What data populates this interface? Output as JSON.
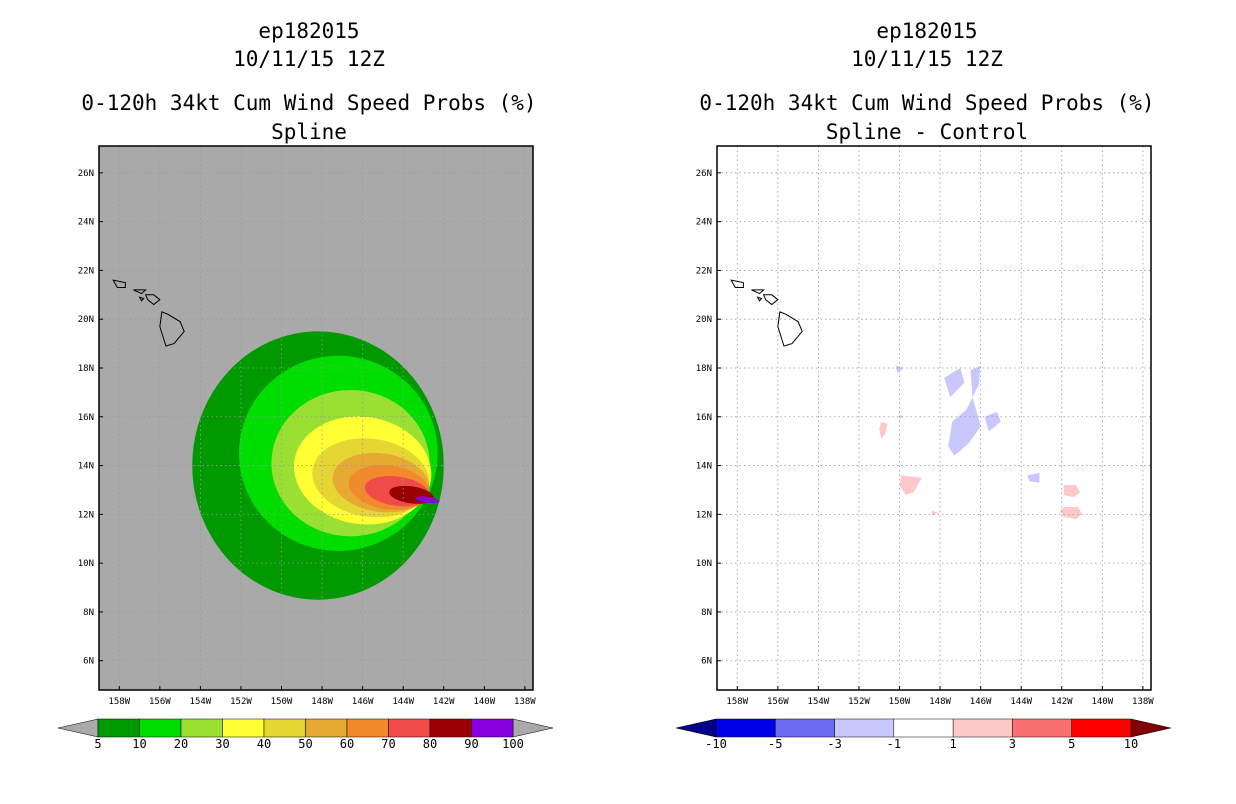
{
  "chart_data": [
    {
      "type": "heatmap",
      "title": [
        "ep182015",
        "10/11/15 12Z",
        "0-120h 34kt Cum Wind Speed Probs (%)",
        "Spline"
      ],
      "x_ticks": [
        "158W",
        "156W",
        "154W",
        "152W",
        "150W",
        "148W",
        "146W",
        "144W",
        "142W",
        "140W",
        "138W"
      ],
      "y_ticks": [
        "26N",
        "24N",
        "22N",
        "20N",
        "18N",
        "16N",
        "14N",
        "12N",
        "10N",
        "8N",
        "6N"
      ],
      "xlim": [
        -159,
        -137.6
      ],
      "ylim": [
        4.8,
        27.1
      ],
      "background": "#a9a9a9",
      "colorbar": {
        "labels": [
          "5",
          "10",
          "20",
          "30",
          "40",
          "50",
          "60",
          "70",
          "80",
          "90",
          "100"
        ],
        "colors": [
          "#009900",
          "#00dd00",
          "#99e033",
          "#ffff33",
          "#e6d633",
          "#e6aa33",
          "#f08a2a",
          "#f04a4a",
          "#990000",
          "#8800e0"
        ],
        "extend_colors": [
          "#a9a9a9",
          "#a9a9a9"
        ]
      },
      "levels": [
        {
          "min": 5,
          "color": "#009900",
          "center": [
            -148.2,
            14.0
          ],
          "rx": 6.2,
          "ry": 5.5
        },
        {
          "min": 10,
          "color": "#00dd00",
          "center": [
            -147.2,
            14.5
          ],
          "rx": 4.9,
          "ry": 4.0
        },
        {
          "min": 20,
          "color": "#99e033",
          "center": [
            -146.6,
            14.1
          ],
          "rx": 3.9,
          "ry": 3.0
        },
        {
          "min": 30,
          "color": "#ffff33",
          "center": [
            -146.0,
            13.8
          ],
          "rx": 3.4,
          "ry": 2.2
        },
        {
          "min": 40,
          "color": "#e6d633",
          "center": [
            -145.6,
            13.5
          ],
          "rx": 2.9,
          "ry": 1.6
        },
        {
          "min": 50,
          "color": "#e6aa33",
          "center": [
            -145.1,
            13.3
          ],
          "rx": 2.4,
          "ry": 1.2
        },
        {
          "min": 60,
          "color": "#f08a2a",
          "center": [
            -144.7,
            13.1
          ],
          "rx": 2.0,
          "ry": 0.9
        },
        {
          "min": 70,
          "color": "#f04a4a",
          "center": [
            -144.3,
            12.95
          ],
          "rx": 1.6,
          "ry": 0.6
        },
        {
          "min": 80,
          "color": "#990000",
          "center": [
            -143.6,
            12.8
          ],
          "rx": 1.1,
          "ry": 0.35
        },
        {
          "min": 90,
          "color": "#8800e0",
          "center": [
            -142.8,
            12.6
          ],
          "rx": 0.6,
          "ry": 0.12
        }
      ]
    },
    {
      "type": "heatmap",
      "title": [
        "ep182015",
        "10/11/15 12Z",
        "0-120h 34kt Cum Wind Speed Probs (%)",
        "Spline - Control"
      ],
      "x_ticks": [
        "158W",
        "156W",
        "154W",
        "152W",
        "150W",
        "148W",
        "146W",
        "144W",
        "142W",
        "140W",
        "138W"
      ],
      "y_ticks": [
        "26N",
        "24N",
        "22N",
        "20N",
        "18N",
        "16N",
        "14N",
        "12N",
        "10N",
        "8N",
        "6N"
      ],
      "xlim": [
        -159,
        -137.6
      ],
      "ylim": [
        4.8,
        27.1
      ],
      "background": "#ffffff",
      "colorbar": {
        "labels": [
          "-10",
          "-5",
          "-3",
          "-1",
          "1",
          "3",
          "5",
          "10"
        ],
        "colors": [
          "#0000e6",
          "#6b6bf0",
          "#c8c8ff",
          "#ffffff",
          "#ffc8c8",
          "#f87070",
          "#ff0000"
        ],
        "extend_colors": [
          "#00008b",
          "#7f0000"
        ]
      },
      "patches": [
        {
          "value": -2,
          "color": "#c8c8ff",
          "points": [
            [
              -147.8,
              17.6
            ],
            [
              -147.0,
              18.0
            ],
            [
              -146.8,
              17.4
            ],
            [
              -147.5,
              16.8
            ]
          ]
        },
        {
          "value": -2,
          "color": "#c8c8ff",
          "points": [
            [
              -146.5,
              17.9
            ],
            [
              -146.0,
              18.1
            ],
            [
              -146.1,
              17.3
            ],
            [
              -146.7,
              16.3
            ],
            [
              -147.4,
              15.8
            ],
            [
              -147.6,
              14.8
            ],
            [
              -147.3,
              14.4
            ],
            [
              -146.6,
              14.9
            ],
            [
              -146.0,
              15.6
            ],
            [
              -146.4,
              16.8
            ]
          ]
        },
        {
          "value": -2,
          "color": "#c8c8ff",
          "points": [
            [
              -145.8,
              16.0
            ],
            [
              -145.2,
              16.2
            ],
            [
              -145.0,
              15.8
            ],
            [
              -145.6,
              15.4
            ]
          ]
        },
        {
          "value": -2,
          "color": "#c8c8ff",
          "points": [
            [
              -150.2,
              18.1
            ],
            [
              -149.8,
              18.0
            ],
            [
              -150.1,
              17.8
            ]
          ]
        },
        {
          "value": -2,
          "color": "#c8c8ff",
          "points": [
            [
              -143.7,
              13.6
            ],
            [
              -143.1,
              13.7
            ],
            [
              -143.1,
              13.3
            ],
            [
              -143.6,
              13.35
            ]
          ]
        },
        {
          "value": 2,
          "color": "#ffc8c8",
          "points": [
            [
              -150.9,
              15.8
            ],
            [
              -150.6,
              15.7
            ],
            [
              -150.7,
              15.3
            ],
            [
              -150.9,
              15.1
            ],
            [
              -151.0,
              15.5
            ]
          ]
        },
        {
          "value": 2,
          "color": "#ffc8c8",
          "points": [
            [
              -149.9,
              13.6
            ],
            [
              -148.9,
              13.5
            ],
            [
              -149.3,
              12.9
            ],
            [
              -149.7,
              12.8
            ],
            [
              -150.0,
              13.2
            ]
          ]
        },
        {
          "value": 2,
          "color": "#ffc8c8",
          "points": [
            [
              -141.9,
              13.2
            ],
            [
              -141.3,
              13.2
            ],
            [
              -141.1,
              12.9
            ],
            [
              -141.4,
              12.7
            ],
            [
              -141.9,
              12.8
            ]
          ]
        },
        {
          "value": 2,
          "color": "#ffc8c8",
          "points": [
            [
              -141.9,
              12.3
            ],
            [
              -141.2,
              12.3
            ],
            [
              -141.0,
              12.0
            ],
            [
              -141.3,
              11.8
            ],
            [
              -141.9,
              11.9
            ],
            [
              -142.1,
              12.1
            ]
          ]
        },
        {
          "value": 2,
          "color": "#ffc8c8",
          "points": [
            [
              -148.4,
              12.15
            ],
            [
              -148.1,
              12.05
            ],
            [
              -148.4,
              11.95
            ]
          ]
        },
        {
          "value": 2,
          "color": "#ffc8c8",
          "points": [
            [
              -150.0,
              16.1
            ],
            [
              -149.8,
              16.0
            ],
            [
              -150.0,
              15.9
            ]
          ]
        }
      ]
    }
  ]
}
